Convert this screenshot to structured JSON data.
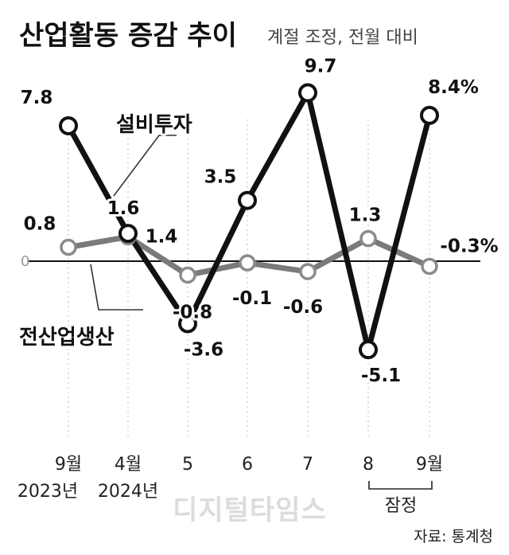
{
  "chart_data": {
    "type": "line",
    "title": "산업활동 증감 추이",
    "subtitle": "계절 조정, 전월 대비",
    "categories": [
      "9월",
      "4월",
      "5",
      "6",
      "7",
      "8",
      "9월"
    ],
    "category_years": [
      "2023년",
      "2024년",
      "",
      "",
      "",
      "",
      ""
    ],
    "x_note": "잠정",
    "unit_suffix": "%",
    "y_zero_label": "0",
    "series": [
      {
        "name": "설비투자",
        "values": [
          7.8,
          1.6,
          -3.6,
          3.5,
          9.7,
          -5.1,
          8.4
        ],
        "labels": [
          "7.8",
          "1.6",
          "-3.6",
          "3.5",
          "9.7",
          "-5.1",
          "8.4%"
        ],
        "color": "#111111"
      },
      {
        "name": "전산업생산",
        "values": [
          0.8,
          1.4,
          -0.8,
          -0.1,
          -0.6,
          1.3,
          -0.3
        ],
        "labels": [
          "0.8",
          "1.4",
          "-0.8",
          "-0.1",
          "-0.6",
          "1.3",
          "-0.3%"
        ],
        "color": "#7a7a7a"
      }
    ],
    "legend": "inline labels",
    "grid": false
  },
  "source": "자료: 통계청",
  "watermark": "디지털타임스"
}
